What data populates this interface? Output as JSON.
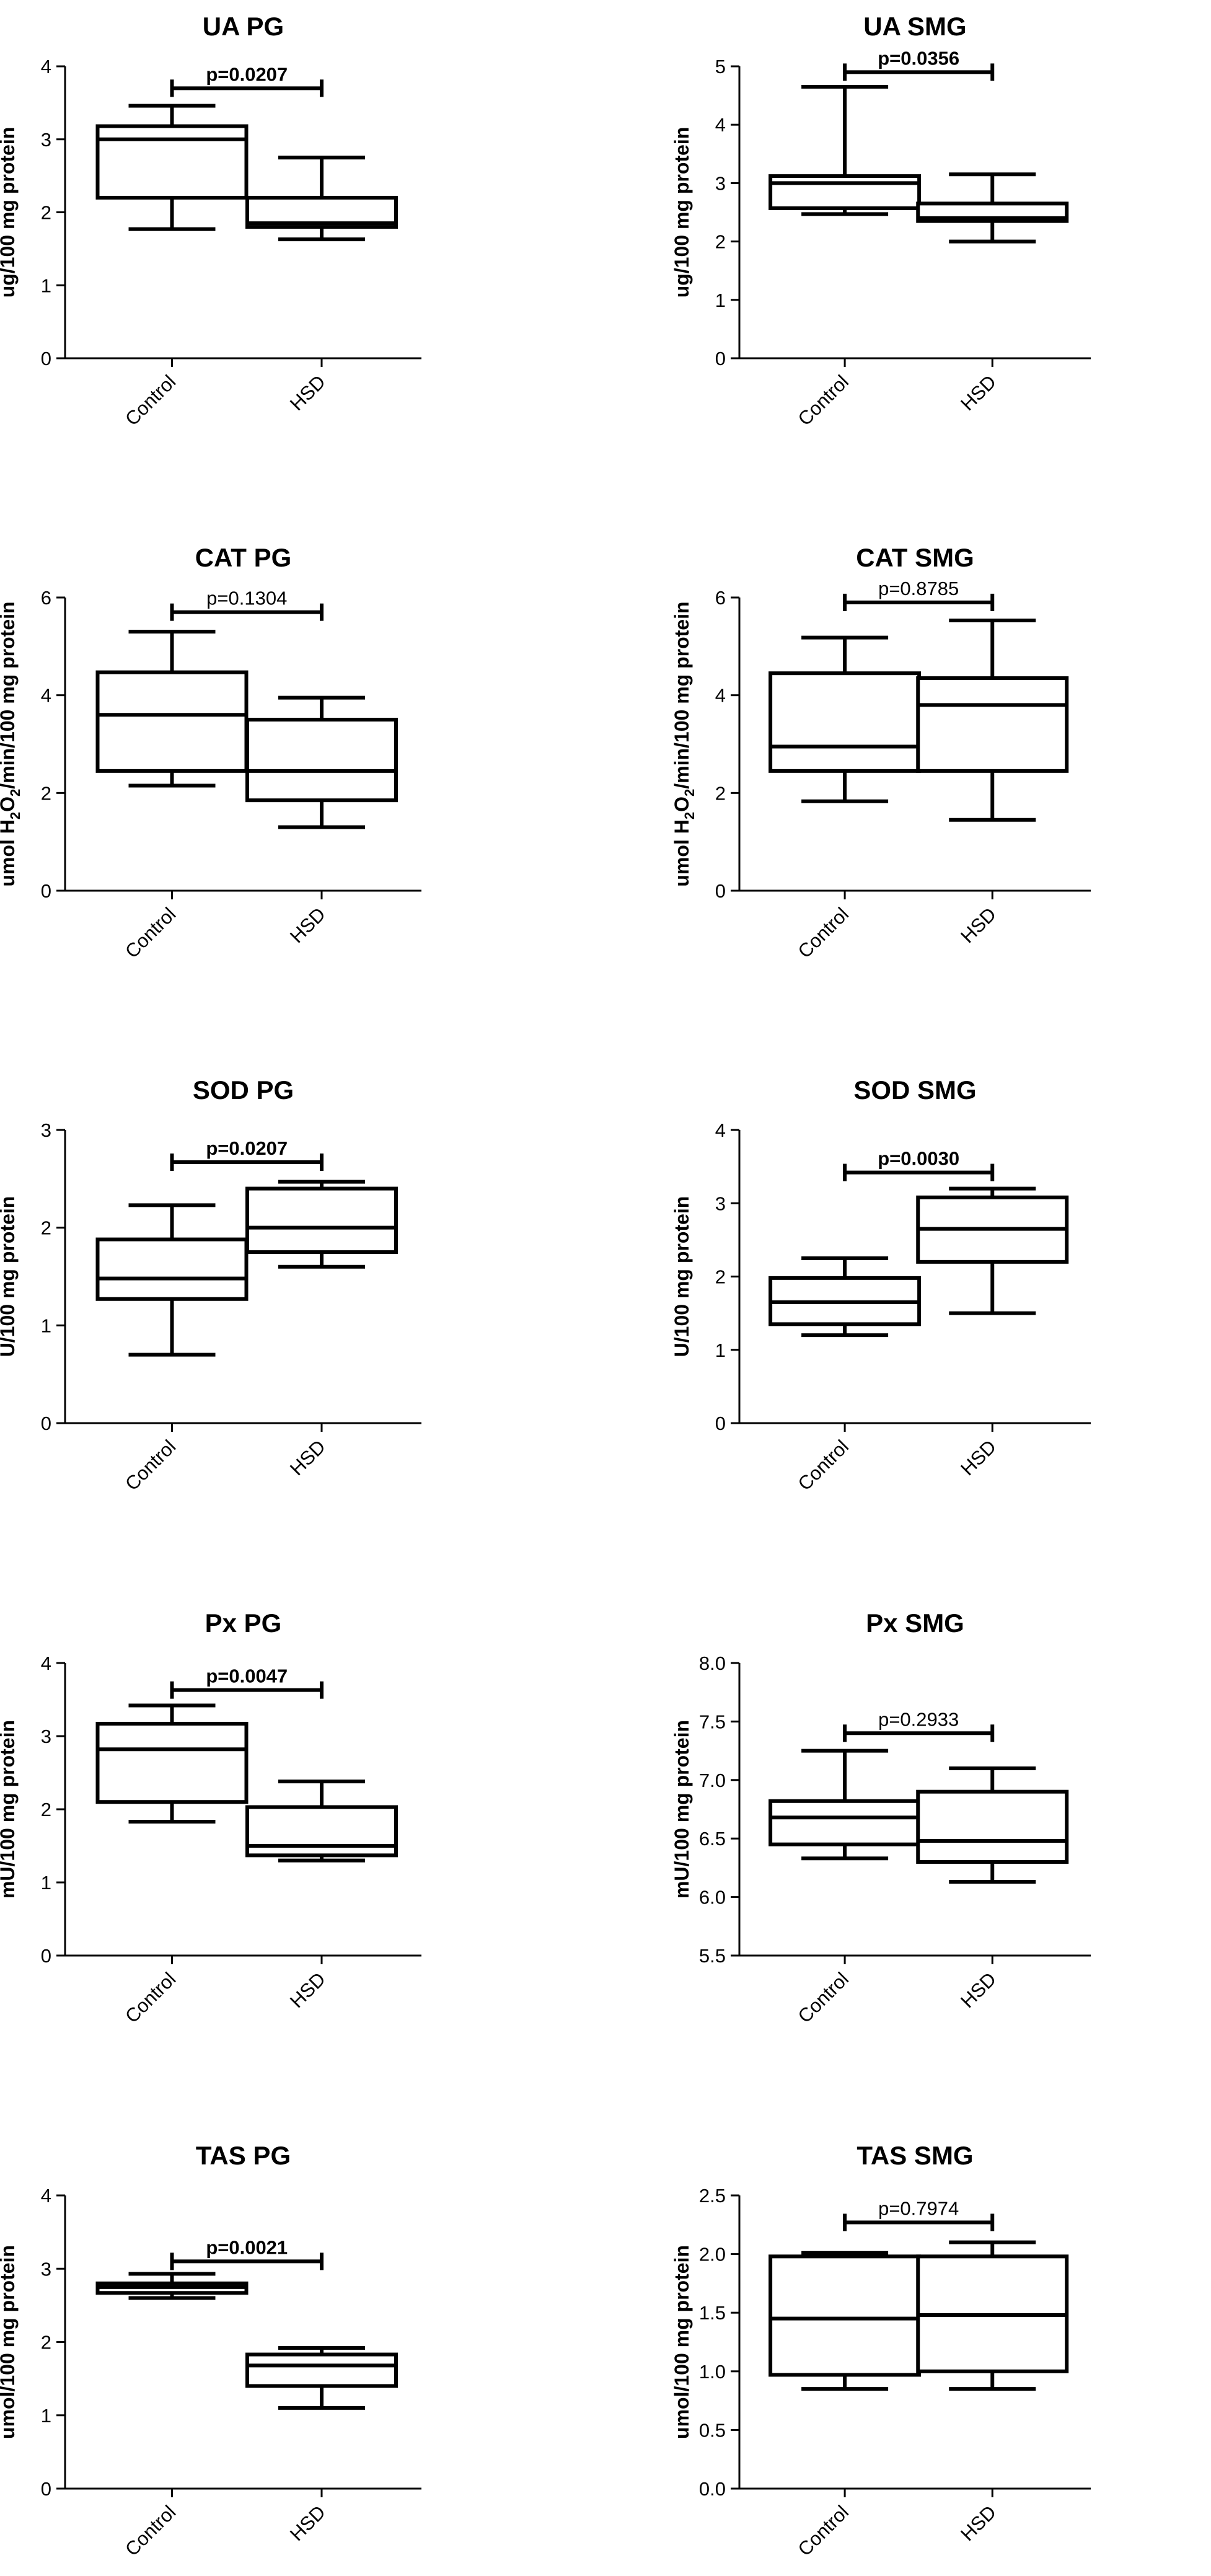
{
  "chart_data": [
    {
      "id": "ua-pg",
      "type": "box",
      "title": "UA PG",
      "ylabel": "ug/100 mg protein",
      "ylim": [
        0,
        4
      ],
      "yticks": [
        "0",
        "1",
        "2",
        "3",
        "4"
      ],
      "categories": [
        "Control",
        "HSD"
      ],
      "boxes": [
        {
          "min": 1.77,
          "q1": 2.2,
          "median": 3.0,
          "q3": 3.18,
          "max": 3.46
        },
        {
          "min": 1.63,
          "q1": 1.8,
          "median": 1.85,
          "q3": 2.2,
          "max": 2.75
        }
      ],
      "p_value": "p=0.0207",
      "p_bold": true,
      "bracket_y": 3.7
    },
    {
      "id": "ua-smg",
      "type": "box",
      "title": "UA SMG",
      "ylabel": "ug/100 mg protein",
      "ylim": [
        0,
        5
      ],
      "yticks": [
        "0",
        "1",
        "2",
        "3",
        "4",
        "5"
      ],
      "categories": [
        "Control",
        "HSD"
      ],
      "boxes": [
        {
          "min": 2.47,
          "q1": 2.57,
          "median": 3.0,
          "q3": 3.12,
          "max": 4.65
        },
        {
          "min": 2.0,
          "q1": 2.35,
          "median": 2.4,
          "q3": 2.65,
          "max": 3.15
        }
      ],
      "p_value": "p=0.0356",
      "p_bold": true,
      "bracket_y": 4.9
    },
    {
      "id": "cat-pg",
      "type": "box",
      "title": "CAT PG",
      "ylabel_parts": [
        "umol H",
        "2",
        "O",
        "2",
        "/min/100 mg protein"
      ],
      "ylim": [
        0,
        6
      ],
      "yticks": [
        "0",
        "2",
        "4",
        "6"
      ],
      "categories": [
        "Control",
        "HSD"
      ],
      "boxes": [
        {
          "min": 2.15,
          "q1": 2.45,
          "median": 3.6,
          "q3": 4.47,
          "max": 5.3
        },
        {
          "min": 1.3,
          "q1": 1.85,
          "median": 2.45,
          "q3": 3.5,
          "max": 3.95
        }
      ],
      "p_value": "p=0.1304",
      "p_bold": false,
      "bracket_y": 5.7
    },
    {
      "id": "cat-smg",
      "type": "box",
      "title": "CAT SMG",
      "ylabel_parts": [
        "umol H",
        "2",
        "O",
        "2",
        "/min/100 mg protein"
      ],
      "ylim": [
        0,
        6
      ],
      "yticks": [
        "0",
        "2",
        "4",
        "6"
      ],
      "categories": [
        "Control",
        "HSD"
      ],
      "boxes": [
        {
          "min": 1.83,
          "q1": 2.45,
          "median": 2.95,
          "q3": 4.45,
          "max": 5.18
        },
        {
          "min": 1.45,
          "q1": 2.45,
          "median": 3.8,
          "q3": 4.35,
          "max": 5.53
        }
      ],
      "p_value": "p=0.8785",
      "p_bold": false,
      "bracket_y": 5.9
    },
    {
      "id": "sod-pg",
      "type": "box",
      "title": "SOD PG",
      "ylabel": "U/100 mg protein",
      "ylim": [
        0,
        3
      ],
      "yticks": [
        "0",
        "1",
        "2",
        "3"
      ],
      "categories": [
        "Control",
        "HSD"
      ],
      "boxes": [
        {
          "min": 0.7,
          "q1": 1.27,
          "median": 1.48,
          "q3": 1.88,
          "max": 2.23
        },
        {
          "min": 1.6,
          "q1": 1.75,
          "median": 2.0,
          "q3": 2.4,
          "max": 2.47
        }
      ],
      "p_value": "p=0.0207",
      "p_bold": true,
      "bracket_y": 2.67
    },
    {
      "id": "sod-smg",
      "type": "box",
      "title": "SOD SMG",
      "ylabel": "U/100 mg protein",
      "ylim": [
        0,
        4
      ],
      "yticks": [
        "0",
        "1",
        "2",
        "3",
        "4"
      ],
      "categories": [
        "Control",
        "HSD"
      ],
      "boxes": [
        {
          "min": 1.2,
          "q1": 1.35,
          "median": 1.65,
          "q3": 1.98,
          "max": 2.25
        },
        {
          "min": 1.5,
          "q1": 2.2,
          "median": 2.65,
          "q3": 3.08,
          "max": 3.2
        }
      ],
      "p_value": "p=0.0030",
      "p_bold": true,
      "bracket_y": 3.42
    },
    {
      "id": "px-pg",
      "type": "box",
      "title": "Px PG",
      "ylabel": "mU/100 mg protein",
      "ylim": [
        0,
        4
      ],
      "yticks": [
        "0",
        "1",
        "2",
        "3",
        "4"
      ],
      "categories": [
        "Control",
        "HSD"
      ],
      "boxes": [
        {
          "min": 1.83,
          "q1": 2.1,
          "median": 2.82,
          "q3": 3.17,
          "max": 3.42
        },
        {
          "min": 1.3,
          "q1": 1.37,
          "median": 1.5,
          "q3": 2.03,
          "max": 2.38
        }
      ],
      "p_value": "p=0.0047",
      "p_bold": true,
      "bracket_y": 3.63
    },
    {
      "id": "px-smg",
      "type": "box",
      "title": "Px SMG",
      "ylabel": "mU/100 mg protein",
      "ylim": [
        5.5,
        8
      ],
      "yticks": [
        "5.5",
        "6.0",
        "6.5",
        "7.0",
        "7.5",
        "8.0"
      ],
      "categories": [
        "Control",
        "HSD"
      ],
      "boxes": [
        {
          "min": 6.33,
          "q1": 6.45,
          "median": 6.68,
          "q3": 6.82,
          "max": 7.25
        },
        {
          "min": 6.13,
          "q1": 6.3,
          "median": 6.48,
          "q3": 6.9,
          "max": 7.1
        }
      ],
      "p_value": "p=0.2933",
      "p_bold": false,
      "bracket_y": 7.4
    },
    {
      "id": "tas-pg",
      "type": "box",
      "title": "TAS PG",
      "ylabel": "umol/100 mg protein",
      "ylim": [
        0,
        4
      ],
      "yticks": [
        "0",
        "1",
        "2",
        "3",
        "4"
      ],
      "categories": [
        "Control",
        "HSD"
      ],
      "boxes": [
        {
          "min": 2.6,
          "q1": 2.67,
          "median": 2.75,
          "q3": 2.8,
          "max": 2.93
        },
        {
          "min": 1.1,
          "q1": 1.4,
          "median": 1.68,
          "q3": 1.83,
          "max": 1.92
        }
      ],
      "p_value": "p=0.0021",
      "p_bold": true,
      "bracket_y": 3.1
    },
    {
      "id": "tas-smg",
      "type": "box",
      "title": "TAS SMG",
      "ylabel": "umol/100 mg protein",
      "ylim": [
        0,
        2.5
      ],
      "yticks": [
        "0.0",
        "0.5",
        "1.0",
        "1.5",
        "2.0",
        "2.5"
      ],
      "categories": [
        "Control",
        "HSD"
      ],
      "boxes": [
        {
          "min": 0.85,
          "q1": 0.97,
          "median": 1.45,
          "q3": 1.98,
          "max": 2.01
        },
        {
          "min": 0.85,
          "q1": 1.0,
          "median": 1.48,
          "q3": 1.98,
          "max": 2.1
        }
      ],
      "p_value": "p=0.7974",
      "p_bold": false,
      "bracket_y": 2.27
    }
  ]
}
